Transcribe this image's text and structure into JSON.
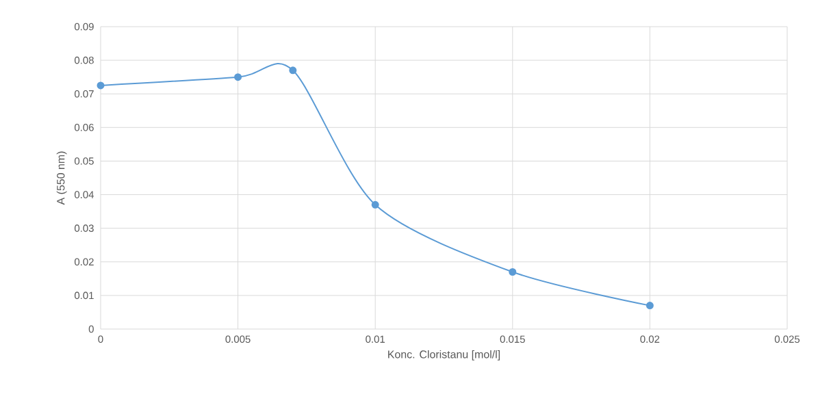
{
  "chart_data": {
    "type": "line",
    "xlabel": "Konc. Cloristanu [mol/l]",
    "ylabel": "A (550 nm)",
    "x": [
      0,
      0.005,
      0.007,
      0.01,
      0.015,
      0.02
    ],
    "series": [
      {
        "color": "#5b9bd5",
        "values": [
          0.0725,
          0.075,
          0.077,
          0.037,
          0.017,
          0.007
        ]
      }
    ],
    "xlim": [
      0,
      0.025
    ],
    "xticks": [
      0,
      0.005,
      0.01,
      0.015,
      0.02,
      0.025
    ],
    "ylim": [
      0,
      0.09
    ],
    "yticks": [
      0,
      0.01,
      0.02,
      0.03,
      0.04,
      0.05,
      0.06,
      0.07,
      0.08,
      0.09
    ],
    "grid": true,
    "marker": "circle",
    "line_style": "solid"
  }
}
